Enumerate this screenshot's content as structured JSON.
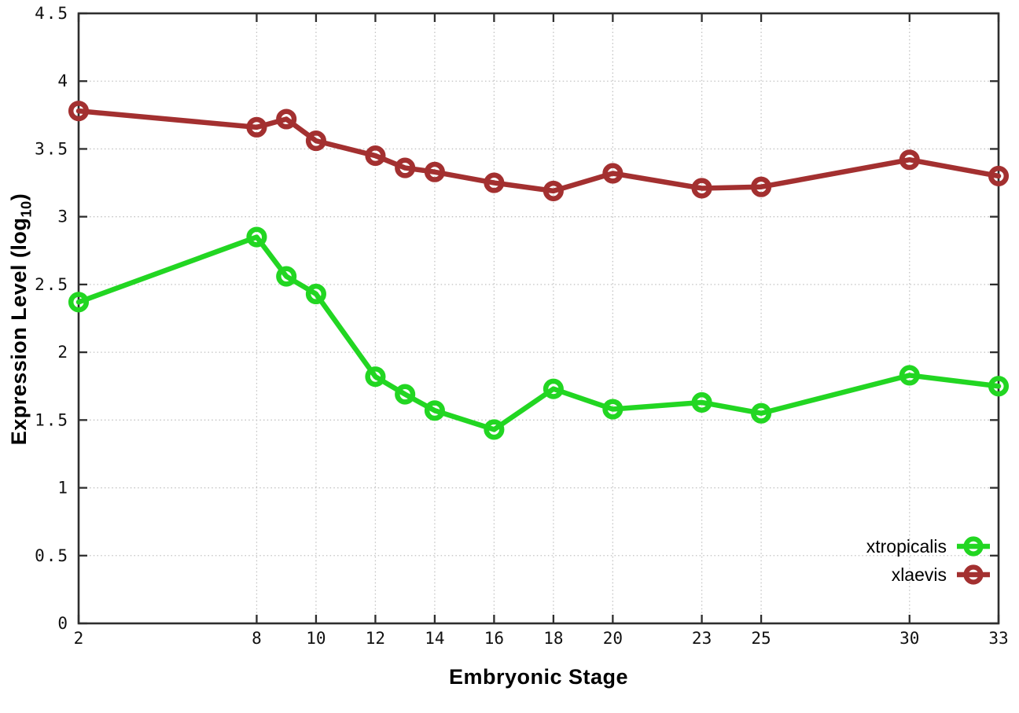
{
  "chart_data": {
    "type": "line",
    "title": "",
    "xlabel": "Embryonic Stage",
    "ylabel": "Expression Level (log10)",
    "ylabel_parts": {
      "prefix": "Expression Level (log",
      "sub": "10",
      "suffix": ")"
    },
    "xlim": [
      2,
      33
    ],
    "ylim": [
      0,
      4.5
    ],
    "grid": true,
    "legend_position": "bottom-right",
    "xticks": [
      2,
      8,
      10,
      12,
      14,
      16,
      18,
      20,
      23,
      25,
      30,
      33
    ],
    "xtick_labels": [
      "2",
      "8",
      "10",
      "12",
      "14",
      "16",
      "18",
      "20",
      "23",
      "25",
      "30",
      "33"
    ],
    "yticks": [
      0,
      0.5,
      1,
      1.5,
      2,
      2.5,
      3,
      3.5,
      4,
      4.5
    ],
    "ytick_labels": [
      "0",
      "0.5",
      "1",
      "1.5",
      "2",
      "2.5",
      "3",
      "3.5",
      "4",
      "4.5"
    ],
    "x": [
      2,
      8,
      9,
      10,
      12,
      13,
      14,
      16,
      18,
      20,
      23,
      25,
      30,
      33
    ],
    "series": [
      {
        "name": "xtropicalis",
        "color": "#22d622",
        "values": [
          2.37,
          2.85,
          2.56,
          2.43,
          1.82,
          1.69,
          1.57,
          1.43,
          1.73,
          1.58,
          1.63,
          1.55,
          1.83,
          1.75
        ]
      },
      {
        "name": "xlaevis",
        "color": "#a33030",
        "values": [
          3.78,
          3.66,
          3.72,
          3.56,
          3.45,
          3.36,
          3.33,
          3.25,
          3.19,
          3.32,
          3.21,
          3.22,
          3.42,
          3.3
        ]
      }
    ],
    "style": {
      "border_color": "#2e2e2e",
      "grid_color": "#c2c2c2",
      "tick_label_color": "#111111",
      "background": "#ffffff"
    }
  }
}
